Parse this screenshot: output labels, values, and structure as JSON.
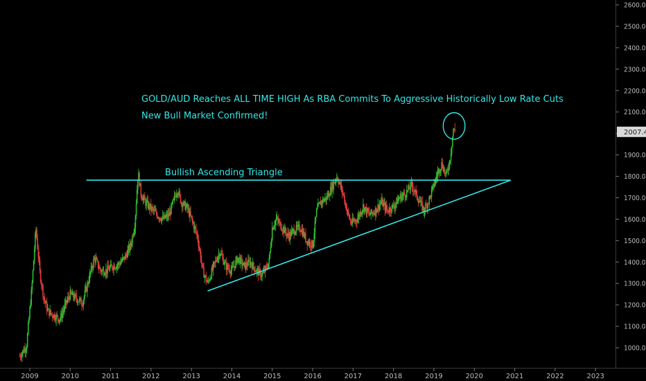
{
  "chart_data": {
    "type": "candlestick",
    "symbol_text": "GOLD/AUD",
    "x_ticks": [
      "2009",
      "2010",
      "2011",
      "2012",
      "2013",
      "2014",
      "2015",
      "2016",
      "2017",
      "2018",
      "2019",
      "2020",
      "2021",
      "2022",
      "2023"
    ],
    "y_ticks": [
      "1000.00",
      "1100.00",
      "1200.00",
      "1300.00",
      "1400.00",
      "1500.00",
      "1600.00",
      "1700.00",
      "1800.00",
      "1900.00",
      "2000.00",
      "2100.00",
      "2200.00",
      "2300.00",
      "2400.00",
      "2500.00",
      "2600.00"
    ],
    "ylim": [
      920,
      2600
    ],
    "xlim": [
      2008.7,
      2023.5
    ],
    "last_price": "2007.44",
    "last_price_value": 2007.44,
    "up_color": "#2ebd2e",
    "down_color": "#e03c3c",
    "line_color": "#35e7e7",
    "price_path": [
      [
        2008.75,
        960
      ],
      [
        2008.92,
        1010
      ],
      [
        2009.05,
        1280
      ],
      [
        2009.15,
        1560
      ],
      [
        2009.25,
        1350
      ],
      [
        2009.35,
        1230
      ],
      [
        2009.45,
        1170
      ],
      [
        2009.6,
        1150
      ],
      [
        2009.75,
        1135
      ],
      [
        2009.9,
        1210
      ],
      [
        2010.0,
        1250
      ],
      [
        2010.15,
        1230
      ],
      [
        2010.3,
        1210
      ],
      [
        2010.42,
        1290
      ],
      [
        2010.5,
        1350
      ],
      [
        2010.6,
        1420
      ],
      [
        2010.75,
        1360
      ],
      [
        2010.9,
        1360
      ],
      [
        2011.05,
        1380
      ],
      [
        2011.2,
        1390
      ],
      [
        2011.35,
        1420
      ],
      [
        2011.5,
        1480
      ],
      [
        2011.6,
        1580
      ],
      [
        2011.68,
        1820
      ],
      [
        2011.75,
        1720
      ],
      [
        2011.85,
        1680
      ],
      [
        2012.0,
        1650
      ],
      [
        2012.15,
        1620
      ],
      [
        2012.3,
        1600
      ],
      [
        2012.45,
        1620
      ],
      [
        2012.55,
        1680
      ],
      [
        2012.65,
        1740
      ],
      [
        2012.75,
        1680
      ],
      [
        2012.9,
        1650
      ],
      [
        2013.0,
        1600
      ],
      [
        2013.15,
        1520
      ],
      [
        2013.28,
        1360
      ],
      [
        2013.4,
        1300
      ],
      [
        2013.55,
        1380
      ],
      [
        2013.7,
        1450
      ],
      [
        2013.85,
        1380
      ],
      [
        2014.0,
        1360
      ],
      [
        2014.15,
        1420
      ],
      [
        2014.3,
        1380
      ],
      [
        2014.45,
        1400
      ],
      [
        2014.6,
        1360
      ],
      [
        2014.75,
        1340
      ],
      [
        2014.85,
        1370
      ],
      [
        2014.92,
        1400
      ],
      [
        2015.0,
        1560
      ],
      [
        2015.1,
        1600
      ],
      [
        2015.25,
        1560
      ],
      [
        2015.4,
        1520
      ],
      [
        2015.55,
        1550
      ],
      [
        2015.7,
        1560
      ],
      [
        2015.85,
        1500
      ],
      [
        2016.0,
        1480
      ],
      [
        2016.1,
        1640
      ],
      [
        2016.2,
        1680
      ],
      [
        2016.35,
        1700
      ],
      [
        2016.5,
        1760
      ],
      [
        2016.6,
        1800
      ],
      [
        2016.75,
        1720
      ],
      [
        2016.85,
        1640
      ],
      [
        2016.95,
        1580
      ],
      [
        2017.1,
        1600
      ],
      [
        2017.25,
        1660
      ],
      [
        2017.4,
        1620
      ],
      [
        2017.55,
        1640
      ],
      [
        2017.7,
        1680
      ],
      [
        2017.85,
        1640
      ],
      [
        2018.0,
        1660
      ],
      [
        2018.15,
        1700
      ],
      [
        2018.3,
        1720
      ],
      [
        2018.45,
        1760
      ],
      [
        2018.6,
        1700
      ],
      [
        2018.75,
        1640
      ],
      [
        2018.88,
        1690
      ],
      [
        2019.0,
        1760
      ],
      [
        2019.1,
        1820
      ],
      [
        2019.2,
        1860
      ],
      [
        2019.3,
        1800
      ],
      [
        2019.4,
        1880
      ],
      [
        2019.48,
        2020
      ],
      [
        2019.52,
        2007
      ]
    ]
  },
  "annotations": {
    "headline": "GOLD/AUD Reaches ALL TIME HIGH As RBA Commits To Aggressive Historically Low Rate Cuts",
    "subline": "New Bull Market Confirmed!",
    "pattern_label": "Bullish Ascending Triangle"
  },
  "resistance_line": {
    "from": [
      2010.4,
      1782
    ],
    "to": [
      2020.9,
      1782
    ]
  },
  "support_line": {
    "from": [
      2013.4,
      1265
    ],
    "to": [
      2020.9,
      1782
    ]
  },
  "ath_circle": {
    "center": [
      2019.5,
      2035
    ],
    "rx_years": 0.27,
    "ry_price": 62
  }
}
